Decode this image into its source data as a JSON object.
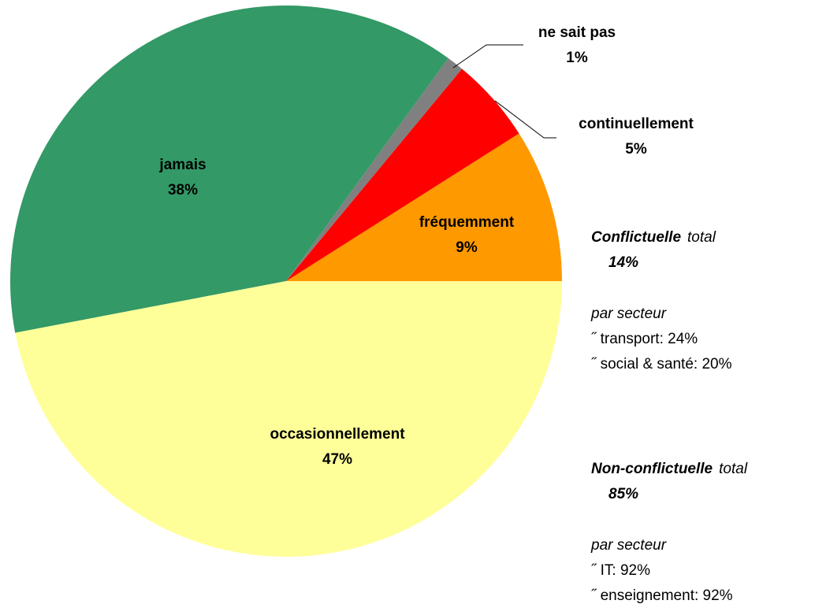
{
  "chart_data": {
    "type": "pie",
    "categories": [
      "fréquemment",
      "continuellement",
      "ne sait pas",
      "jamais",
      "occasionnellement"
    ],
    "values": [
      9,
      5,
      1,
      38,
      47
    ],
    "value_labels": [
      "9%",
      "5%",
      "1%",
      "38%",
      "47%"
    ],
    "colors": [
      "#ff9900",
      "#ff0000",
      "#808080",
      "#339966",
      "#ffff99"
    ],
    "annotations": [
      {
        "title": "Conflictuelle",
        "qualifier": "total",
        "value": "14%",
        "subtitle": "par secteur",
        "items": [
          "˝ transport: 24%",
          "˝ social & santé: 20%"
        ]
      },
      {
        "title": "Non-conflictuelle",
        "qualifier": "total",
        "value": "85%",
        "subtitle": "par secteur",
        "items": [
          "˝ IT: 92%",
          "˝ enseignement: 92%"
        ]
      }
    ]
  }
}
